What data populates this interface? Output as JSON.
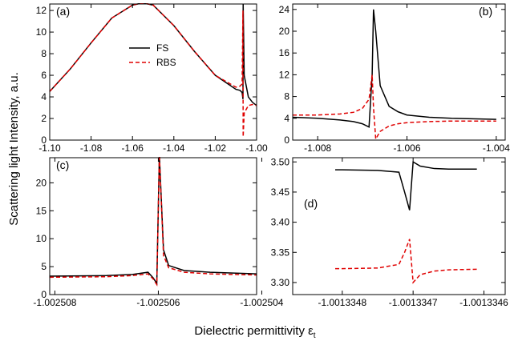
{
  "ylabel": "Scattering light Intensity, a.u.",
  "xlabel": "Dielectric permittivity ε",
  "xlabel_sub": "t",
  "chart_data": [
    {
      "type": "line",
      "panel": "(a)",
      "legend": "upper center",
      "x": [
        -1.1,
        -1.09,
        -1.08,
        -1.07,
        -1.06,
        -1.055,
        -1.05,
        -1.04,
        -1.03,
        -1.02,
        -1.01,
        -1.008,
        -1.007,
        -1.0066,
        -1.0065,
        -1.006,
        -1.004,
        -1.002,
        -1.0
      ],
      "series": [
        {
          "name": "FS",
          "color": "#000000",
          "dash": "solid",
          "values": [
            4.5,
            6.6,
            9.0,
            11.3,
            12.5,
            12.7,
            12.5,
            10.6,
            8.2,
            6.0,
            4.7,
            4.6,
            4.4,
            3.8,
            12.6,
            6.0,
            4.0,
            3.5,
            3.2
          ]
        },
        {
          "name": "RBS",
          "color": "#e00000",
          "dash": "dashed",
          "values": [
            4.5,
            6.6,
            9.0,
            11.3,
            12.5,
            12.7,
            12.5,
            10.6,
            8.2,
            6.0,
            4.9,
            5.0,
            5.2,
            12.0,
            0.3,
            2.5,
            3.2,
            3.3,
            3.2
          ]
        }
      ],
      "xlim": [
        -1.1,
        -1.0
      ],
      "ylim": [
        0,
        12.6
      ],
      "xticks": [
        {
          "value": -1.1,
          "label": "-1.10"
        },
        -1.08,
        -1.06,
        -1.04,
        -1.02,
        {
          "value": -1.0,
          "label": "-1.00"
        }
      ],
      "yticks": [
        0,
        2,
        4,
        6,
        8,
        10,
        12
      ]
    },
    {
      "type": "line",
      "panel": "(b)",
      "x": [
        -1.00856,
        -1.008,
        -1.0075,
        -1.0072,
        -1.007,
        -1.00685,
        -1.00678,
        -1.00675,
        -1.0067,
        -1.0066,
        -1.0064,
        -1.0062,
        -1.006,
        -1.0055,
        -1.005,
        -1.004
      ],
      "series": [
        {
          "color": "#000000",
          "dash": "solid",
          "values": [
            4.2,
            4.0,
            3.7,
            3.4,
            3.0,
            2.4,
            12,
            24,
            20,
            10,
            6.2,
            5.2,
            4.6,
            4.2,
            4.0,
            3.8
          ]
        },
        {
          "color": "#e00000",
          "dash": "dashed",
          "values": [
            4.6,
            4.6,
            4.8,
            5.1,
            5.8,
            7.5,
            12,
            6,
            0.2,
            1.6,
            2.6,
            3.0,
            3.2,
            3.4,
            3.5,
            3.5
          ]
        }
      ],
      "xlim": [
        -1.00856,
        -1.0038
      ],
      "ylim": [
        0,
        25
      ],
      "xticks": [
        -1.008,
        -1.006,
        -1.004
      ],
      "yticks": [
        0,
        4,
        8,
        12,
        16,
        20,
        24
      ]
    },
    {
      "type": "line",
      "panel": "(c)",
      "x": [
        -1.0025081,
        -1.002507,
        -1.0025065,
        -1.0025062,
        -1.0025061,
        -1.00250603,
        -1.00250598,
        -1.0025059,
        -1.0025058,
        -1.0025055,
        -1.002505,
        -1.0025041
      ],
      "series": [
        {
          "color": "#000000",
          "dash": "solid",
          "values": [
            3.3,
            3.4,
            3.6,
            4.0,
            3.0,
            2.0,
            25,
            8,
            5.2,
            4.3,
            4.0,
            3.7
          ]
        },
        {
          "color": "#e00000",
          "dash": "dashed",
          "values": [
            3.1,
            3.2,
            3.4,
            3.7,
            2.8,
            1.8,
            25,
            7,
            4.8,
            4.0,
            3.7,
            3.5
          ]
        }
      ],
      "xlim": [
        -1.0025081,
        -1.0025041
      ],
      "ylim": [
        0,
        24.5
      ],
      "xticks": [
        -1.002508,
        -1.002506,
        -1.002504
      ],
      "yticks": [
        0,
        5,
        10,
        15,
        20
      ]
    },
    {
      "type": "line",
      "panel": "(d)",
      "x": [
        -1.00133481,
        -1.0013348,
        -1.00133475,
        -1.00133472,
        -1.001334712,
        -1.001334705,
        -1.0013347,
        -1.00133469,
        -1.00133467,
        -1.00133465,
        -1.00133461
      ],
      "series": [
        {
          "color": "#000000",
          "dash": "solid",
          "values": [
            3.487,
            3.487,
            3.486,
            3.483,
            3.45,
            3.42,
            3.5,
            3.493,
            3.489,
            3.488,
            3.488
          ]
        },
        {
          "color": "#e00000",
          "dash": "dashed",
          "values": [
            3.323,
            3.323,
            3.324,
            3.33,
            3.35,
            3.372,
            3.3,
            3.313,
            3.319,
            3.321,
            3.322
          ]
        }
      ],
      "xlim": [
        -1.00133487,
        -1.00133457
      ],
      "ylim": [
        3.28,
        3.507
      ],
      "xticks": [
        -1.0013348,
        -1.0013347,
        -1.0013346
      ],
      "yticks": [
        {
          "value": 3.5,
          "label": "3.50"
        },
        3.45,
        {
          "value": 3.4,
          "label": "3.40"
        },
        3.35,
        {
          "value": 3.3,
          "label": "3.30"
        }
      ]
    }
  ]
}
